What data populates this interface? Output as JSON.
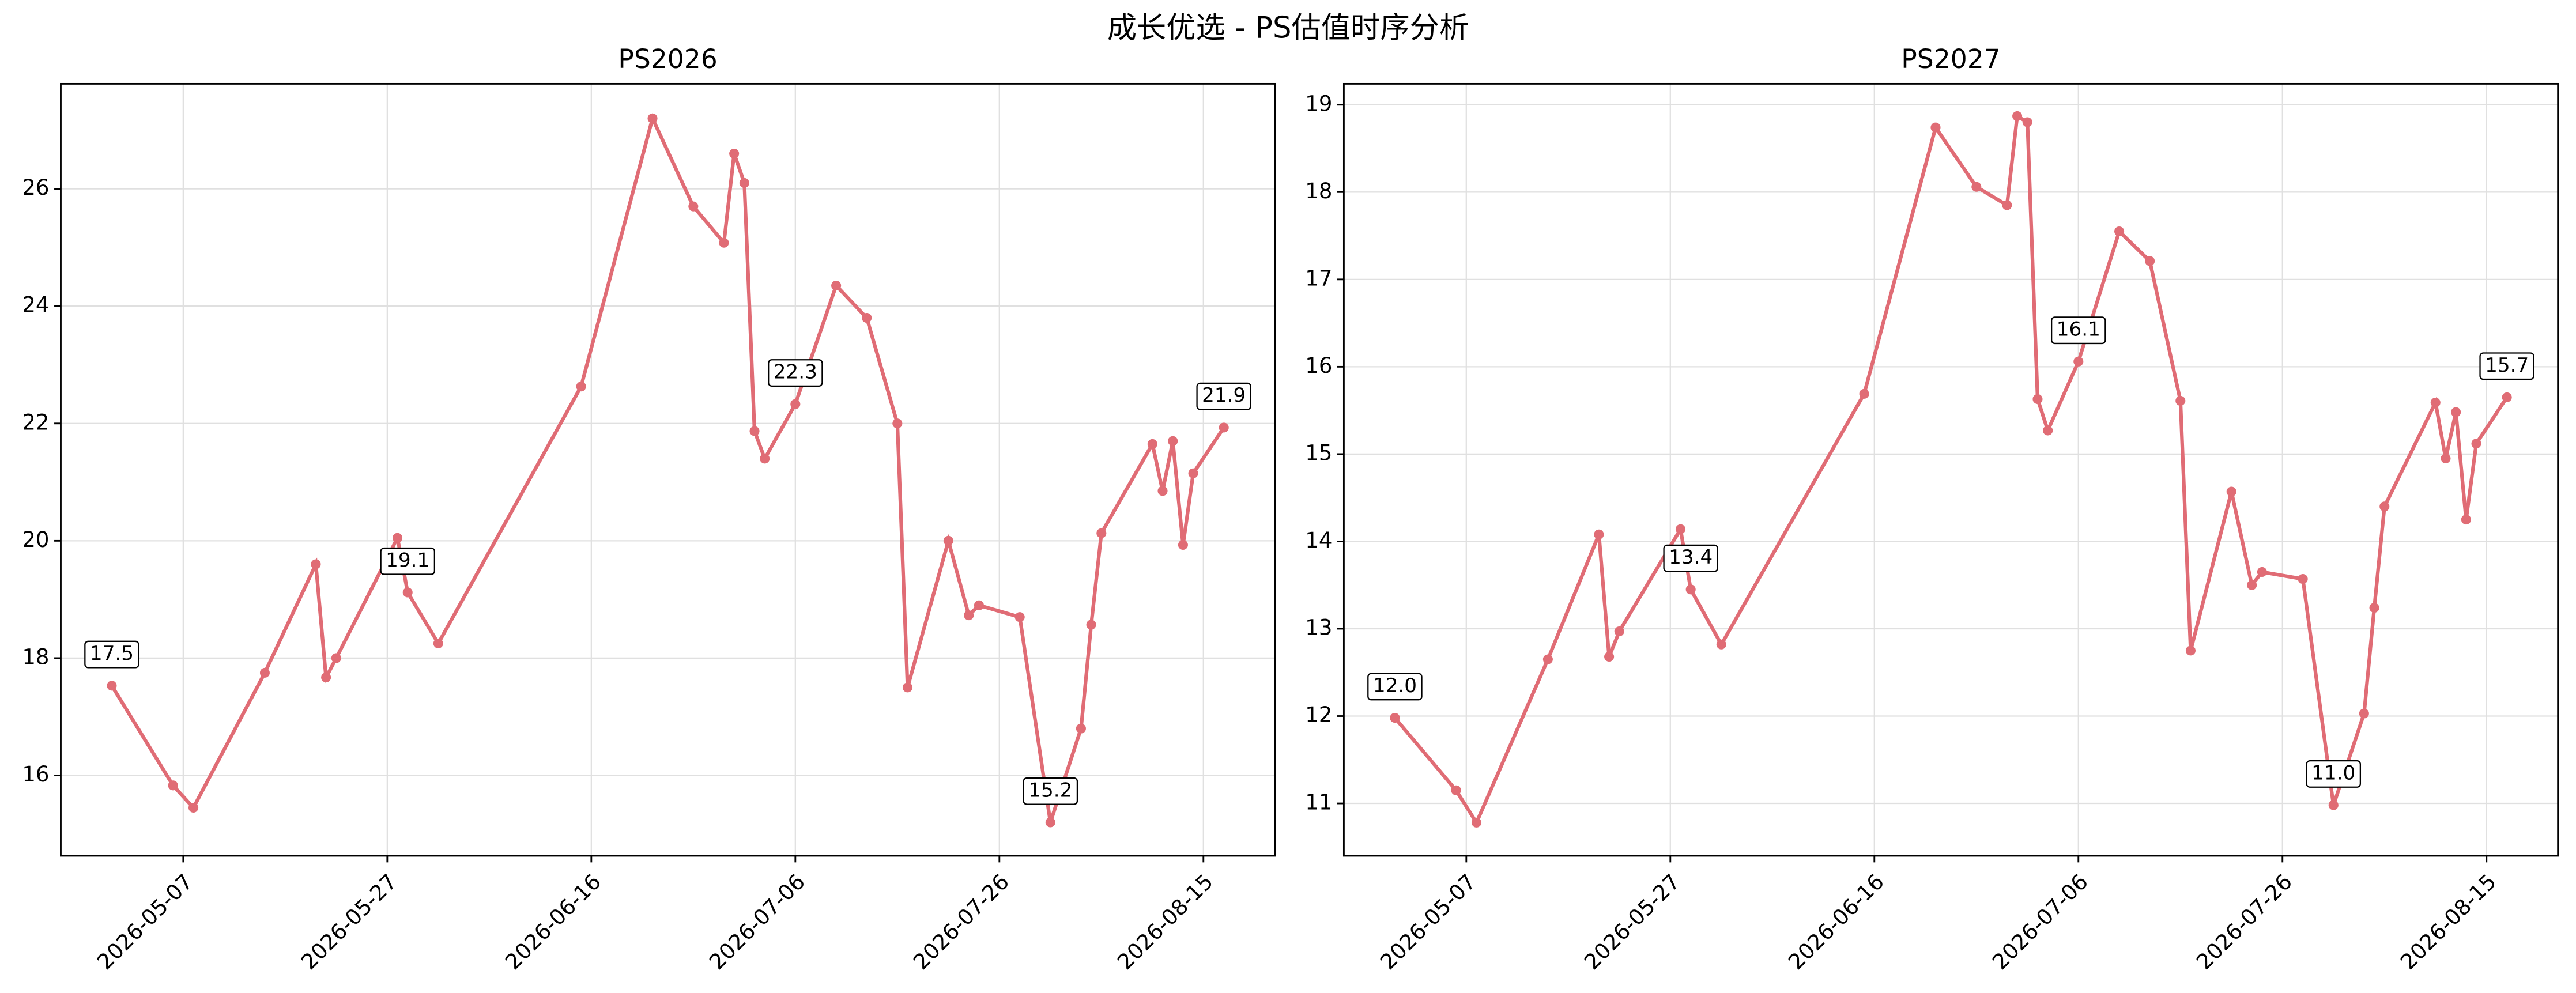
{
  "title": "成长优选 - PS估值时序分析",
  "chart_data": [
    {
      "type": "line",
      "title": "PS2026",
      "color": "#e06c75",
      "grid": true,
      "x": [
        "2026-04-30",
        "2026-05-06",
        "2026-05-08",
        "2026-05-15",
        "2026-05-20",
        "2026-05-21",
        "2026-05-22",
        "2026-05-28",
        "2026-05-29",
        "2026-06-01",
        "2026-06-15",
        "2026-06-22",
        "2026-06-26",
        "2026-06-29",
        "2026-06-30",
        "2026-07-01",
        "2026-07-02",
        "2026-07-03",
        "2026-07-06",
        "2026-07-10",
        "2026-07-13",
        "2026-07-16",
        "2026-07-17",
        "2026-07-21",
        "2026-07-23",
        "2026-07-24",
        "2026-07-28",
        "2026-07-31",
        "2026-08-03",
        "2026-08-04",
        "2026-08-05",
        "2026-08-10",
        "2026-08-11",
        "2026-08-12",
        "2026-08-13",
        "2026-08-14",
        "2026-08-17"
      ],
      "values": [
        17.53,
        15.83,
        15.45,
        17.75,
        19.6,
        17.67,
        18.0,
        20.05,
        19.12,
        18.25,
        22.63,
        27.2,
        25.7,
        25.08,
        26.6,
        26.1,
        21.87,
        21.4,
        22.33,
        24.35,
        23.8,
        22.0,
        17.5,
        20.0,
        18.73,
        18.9,
        18.7,
        15.2,
        16.8,
        18.57,
        20.13,
        21.65,
        20.85,
        21.7,
        19.93,
        21.15,
        21.93
      ],
      "value_labels": [
        "17.5",
        null,
        null,
        null,
        null,
        null,
        null,
        null,
        "19.1",
        null,
        null,
        null,
        null,
        null,
        null,
        null,
        null,
        null,
        "22.3",
        null,
        null,
        null,
        null,
        null,
        null,
        null,
        null,
        "15.2",
        null,
        null,
        null,
        null,
        null,
        null,
        null,
        null,
        "21.9"
      ],
      "xlim": [
        "2026-04-25",
        "2026-08-22"
      ],
      "xticks": [
        "2026-05-07",
        "2026-05-27",
        "2026-06-16",
        "2026-07-06",
        "2026-07-26",
        "2026-08-15"
      ],
      "ylim": [
        14.63,
        27.79
      ],
      "yticks": [
        16,
        18,
        20,
        22,
        24,
        26
      ]
    },
    {
      "type": "line",
      "title": "PS2027",
      "color": "#e06c75",
      "grid": true,
      "x": [
        "2026-04-30",
        "2026-05-06",
        "2026-05-08",
        "2026-05-15",
        "2026-05-20",
        "2026-05-21",
        "2026-05-22",
        "2026-05-28",
        "2026-05-29",
        "2026-06-01",
        "2026-06-15",
        "2026-06-22",
        "2026-06-26",
        "2026-06-29",
        "2026-06-30",
        "2026-07-01",
        "2026-07-02",
        "2026-07-03",
        "2026-07-06",
        "2026-07-10",
        "2026-07-13",
        "2026-07-16",
        "2026-07-17",
        "2026-07-21",
        "2026-07-23",
        "2026-07-24",
        "2026-07-28",
        "2026-07-31",
        "2026-08-03",
        "2026-08-04",
        "2026-08-05",
        "2026-08-10",
        "2026-08-11",
        "2026-08-12",
        "2026-08-13",
        "2026-08-14",
        "2026-08-17"
      ],
      "values": [
        11.98,
        11.15,
        10.78,
        12.65,
        14.08,
        12.68,
        12.97,
        14.14,
        13.45,
        12.82,
        15.69,
        18.74,
        18.06,
        17.85,
        18.87,
        18.8,
        15.63,
        15.27,
        16.06,
        17.55,
        17.21,
        15.61,
        12.75,
        14.57,
        13.5,
        13.65,
        13.57,
        10.98,
        12.03,
        13.24,
        14.4,
        15.59,
        14.95,
        15.48,
        14.25,
        15.12,
        15.65
      ],
      "value_labels": [
        "12.0",
        null,
        null,
        null,
        null,
        null,
        null,
        null,
        "13.4",
        null,
        null,
        null,
        null,
        null,
        null,
        null,
        null,
        null,
        "16.1",
        null,
        null,
        null,
        null,
        null,
        null,
        null,
        null,
        "11.0",
        null,
        null,
        null,
        null,
        null,
        null,
        null,
        null,
        "15.7"
      ],
      "xlim": [
        "2026-04-25",
        "2026-08-22"
      ],
      "xticks": [
        "2026-05-07",
        "2026-05-27",
        "2026-06-16",
        "2026-07-06",
        "2026-07-26",
        "2026-08-15"
      ],
      "ylim": [
        10.4,
        19.24
      ],
      "yticks": [
        11,
        12,
        13,
        14,
        15,
        16,
        17,
        18,
        19
      ]
    }
  ]
}
